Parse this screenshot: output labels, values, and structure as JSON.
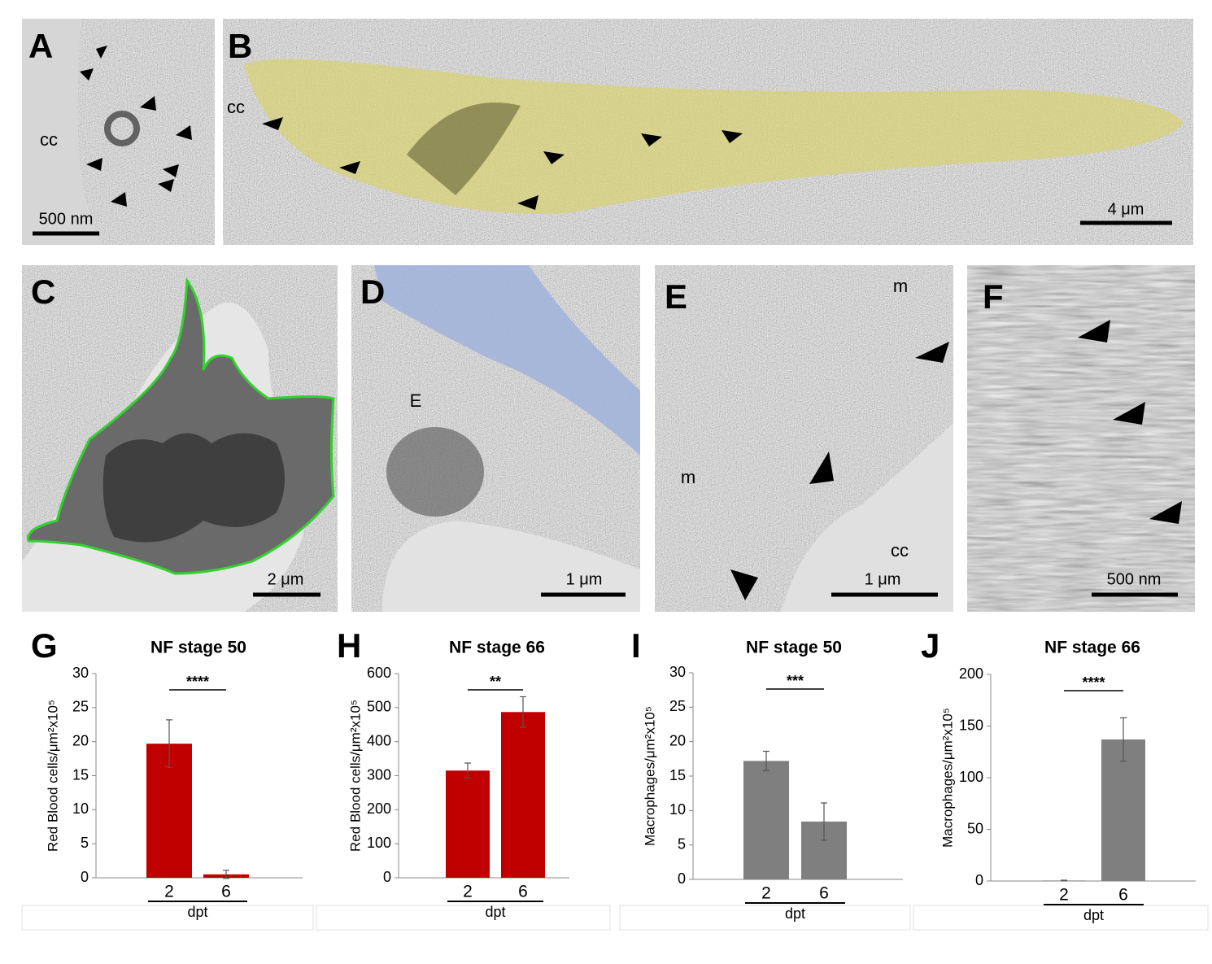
{
  "panels": [
    {
      "letter": "A",
      "texts": [
        "cc"
      ],
      "scale_bar": "500 nm"
    },
    {
      "letter": "B",
      "texts": [
        "cc"
      ],
      "scale_bar": "4 μm"
    },
    {
      "letter": "C",
      "texts": [],
      "scale_bar": "2 μm"
    },
    {
      "letter": "D",
      "texts": [
        "E"
      ],
      "scale_bar": "1 μm"
    },
    {
      "letter": "E",
      "texts": [
        "m",
        "m",
        "cc"
      ],
      "scale_bar": "1 μm"
    },
    {
      "letter": "F",
      "texts": [],
      "scale_bar": "500 nm"
    }
  ],
  "chart_data": [
    {
      "type": "bar",
      "panel": "G",
      "title": "NF stage 50",
      "y_label": "Red Blood cells/μm²x10⁵",
      "x_label": "dpt",
      "categories": [
        "2",
        "6"
      ],
      "values": [
        19.7,
        0.5
      ],
      "errors": [
        3.5,
        0.6
      ],
      "color": "#c00000",
      "significance": "****",
      "ylim": [
        0,
        30
      ],
      "yticks": [
        0,
        5,
        10,
        15,
        20,
        25,
        30
      ]
    },
    {
      "type": "bar",
      "panel": "H",
      "title": "NF stage 66",
      "y_label": "Red Blood cells/μm²x10⁵",
      "x_label": "dpt",
      "categories": [
        "2",
        "6"
      ],
      "values": [
        315,
        487
      ],
      "errors": [
        22,
        45
      ],
      "color": "#c00000",
      "significance": "**",
      "ylim": [
        0,
        600
      ],
      "yticks": [
        0,
        100,
        200,
        300,
        400,
        500,
        600
      ]
    },
    {
      "type": "bar",
      "panel": "I",
      "title": "NF stage 50",
      "y_label": "Macrophages/μm²x10⁵",
      "x_label": "dpt",
      "categories": [
        "2",
        "6"
      ],
      "values": [
        17.2,
        8.4
      ],
      "errors": [
        1.4,
        2.7
      ],
      "color": "#7f7f7f",
      "significance": "***",
      "ylim": [
        0,
        30
      ],
      "yticks": [
        0,
        5,
        10,
        15,
        20,
        25,
        30
      ]
    },
    {
      "type": "bar",
      "panel": "J",
      "title": "NF stage 66",
      "y_label": "Macrophages/μm²x10⁵",
      "x_label": "dpt",
      "categories": [
        "2",
        "6"
      ],
      "values": [
        0.5,
        137
      ],
      "errors": [
        0.3,
        21
      ],
      "color": "#7f7f7f",
      "significance": "****",
      "ylim": [
        0,
        200
      ],
      "yticks": [
        0,
        50,
        100,
        150,
        200
      ]
    }
  ]
}
